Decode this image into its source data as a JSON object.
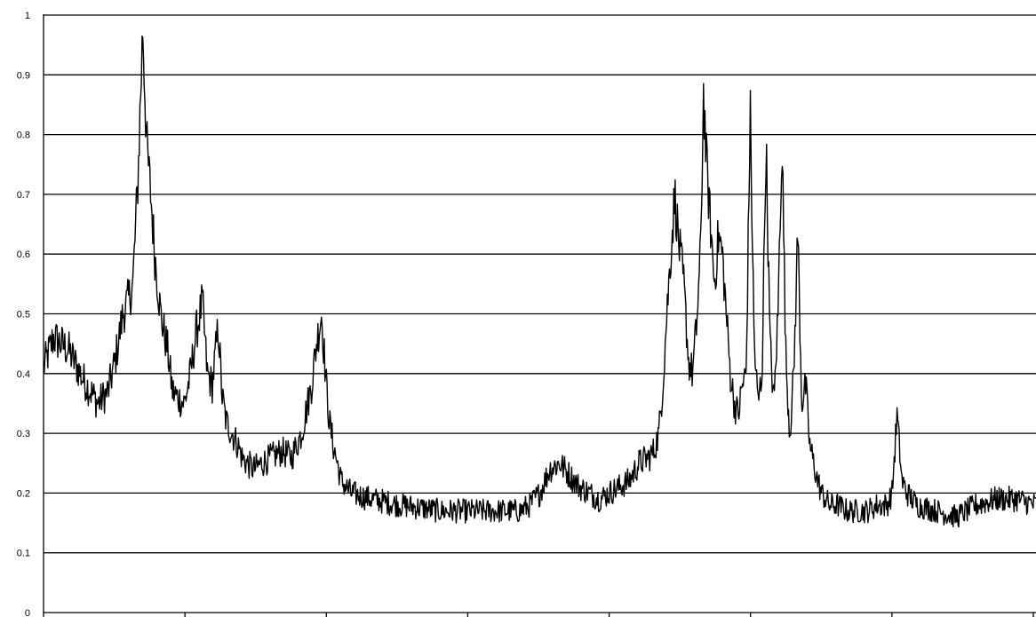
{
  "chart_data": {
    "type": "line",
    "title": "",
    "xlabel": "",
    "ylabel": "",
    "ylim": [
      0,
      1
    ],
    "xlim": [
      0,
      1
    ],
    "grid": true,
    "legend": "none",
    "y_ticks": [
      "0",
      "0.1",
      "0.2",
      "0.3",
      "0.4",
      "0.5",
      "0.6",
      "0.7",
      "0.8",
      "0.9",
      "1"
    ],
    "x_tick_count": 8,
    "line_color": "#000000",
    "grid_color": "#000000",
    "series": [
      {
        "x": [
          0.0,
          0.01,
          0.025,
          0.04,
          0.055,
          0.065,
          0.072,
          0.08,
          0.085,
          0.09,
          0.095,
          0.1,
          0.104,
          0.108,
          0.112,
          0.118,
          0.125,
          0.13,
          0.135,
          0.142,
          0.148,
          0.154,
          0.16,
          0.165,
          0.17,
          0.176,
          0.18,
          0.184,
          0.19,
          0.196,
          0.2,
          0.205,
          0.212,
          0.22,
          0.23,
          0.24,
          0.25,
          0.26,
          0.27,
          0.275,
          0.28,
          0.285,
          0.288,
          0.292,
          0.3,
          0.31,
          0.33,
          0.36,
          0.4,
          0.44,
          0.47,
          0.48,
          0.49,
          0.5,
          0.51,
          0.52,
          0.54,
          0.56,
          0.57,
          0.58,
          0.59,
          0.6,
          0.61,
          0.615,
          0.62,
          0.624,
          0.628,
          0.632,
          0.636,
          0.64,
          0.645,
          0.65,
          0.654,
          0.658,
          0.662,
          0.665,
          0.668,
          0.672,
          0.676,
          0.68,
          0.684,
          0.688,
          0.692,
          0.696,
          0.7,
          0.704,
          0.708,
          0.712,
          0.716,
          0.72,
          0.724,
          0.728,
          0.732,
          0.736,
          0.74,
          0.744,
          0.748,
          0.752,
          0.756,
          0.76,
          0.764,
          0.768,
          0.772,
          0.776,
          0.78,
          0.784,
          0.788,
          0.792,
          0.796,
          0.8,
          0.81,
          0.82,
          0.83,
          0.84,
          0.85,
          0.855,
          0.86,
          0.865,
          0.87,
          0.88,
          0.9,
          0.92,
          0.94,
          0.96,
          0.98,
          1.0
        ],
        "y": [
          0.41,
          0.46,
          0.44,
          0.39,
          0.35,
          0.37,
          0.42,
          0.5,
          0.52,
          0.55,
          0.72,
          0.98,
          0.78,
          0.7,
          0.6,
          0.5,
          0.44,
          0.37,
          0.36,
          0.35,
          0.4,
          0.47,
          0.52,
          0.4,
          0.38,
          0.48,
          0.36,
          0.32,
          0.3,
          0.28,
          0.26,
          0.25,
          0.24,
          0.25,
          0.26,
          0.27,
          0.26,
          0.3,
          0.38,
          0.45,
          0.5,
          0.38,
          0.32,
          0.28,
          0.22,
          0.2,
          0.19,
          0.18,
          0.17,
          0.17,
          0.17,
          0.17,
          0.18,
          0.2,
          0.24,
          0.25,
          0.21,
          0.19,
          0.2,
          0.21,
          0.22,
          0.25,
          0.26,
          0.27,
          0.3,
          0.38,
          0.5,
          0.6,
          0.7,
          0.62,
          0.55,
          0.42,
          0.4,
          0.48,
          0.6,
          0.87,
          0.75,
          0.65,
          0.55,
          0.63,
          0.6,
          0.5,
          0.4,
          0.35,
          0.33,
          0.38,
          0.4,
          0.84,
          0.45,
          0.35,
          0.4,
          0.79,
          0.45,
          0.35,
          0.5,
          0.8,
          0.42,
          0.3,
          0.4,
          0.64,
          0.35,
          0.38,
          0.28,
          0.25,
          0.22,
          0.2,
          0.19,
          0.18,
          0.18,
          0.18,
          0.17,
          0.17,
          0.17,
          0.18,
          0.18,
          0.2,
          0.33,
          0.22,
          0.2,
          0.18,
          0.17,
          0.16,
          0.18,
          0.19,
          0.19,
          0.18
        ]
      }
    ]
  }
}
